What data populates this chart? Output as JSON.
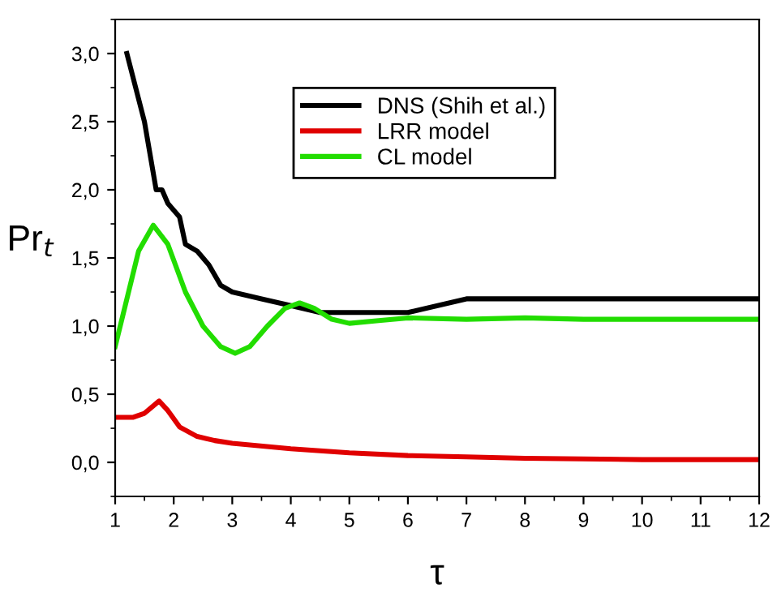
{
  "chart_data": {
    "type": "line",
    "xlabel": "τ",
    "ylabel": "Pr$_{t}$",
    "xlim": [
      1,
      12
    ],
    "xticks": [
      1,
      2,
      3,
      4,
      5,
      6,
      7,
      8,
      9,
      10,
      11,
      12
    ],
    "ylim": [
      -0.25,
      3.25
    ],
    "yticks": [
      {
        "value": 0,
        "label": "0,0"
      },
      {
        "value": 0.5,
        "label": "0,5"
      },
      {
        "value": 1,
        "label": "1,0"
      },
      {
        "value": 1.5,
        "label": "1,5"
      },
      {
        "value": 2,
        "label": "2,0"
      },
      {
        "value": 2.5,
        "label": "2,5"
      },
      {
        "value": 3,
        "label": "3,0"
      }
    ],
    "grid": false,
    "legend": "top",
    "marker": "none",
    "line_style": "solid",
    "series": [
      {
        "name": "DNS (Shih et al.)",
        "color": "#000000",
        "x": [
          1.2,
          1.5,
          1.6,
          1.7,
          1.8,
          1.9,
          2.1,
          2.2,
          2.4,
          2.6,
          2.8,
          3,
          3.5,
          4,
          4.5,
          5,
          6,
          7,
          12
        ],
        "values": [
          3.0,
          2.5,
          2.25,
          2.0,
          2.0,
          1.9,
          1.8,
          1.6,
          1.55,
          1.45,
          1.3,
          1.25,
          1.2,
          1.15,
          1.1,
          1.1,
          1.1,
          1.2,
          1.2
        ]
      },
      {
        "name": "LRR model",
        "color": "#e00000",
        "x": [
          1,
          1.3,
          1.5,
          1.75,
          1.9,
          2.1,
          2.4,
          2.7,
          3,
          4,
          5,
          6,
          7,
          8,
          9,
          10,
          12
        ],
        "values": [
          0.33,
          0.33,
          0.36,
          0.45,
          0.38,
          0.26,
          0.19,
          0.16,
          0.14,
          0.1,
          0.07,
          0.05,
          0.04,
          0.03,
          0.025,
          0.02,
          0.02
        ]
      },
      {
        "name": "CL model",
        "color": "#22dd00",
        "x": [
          1,
          1.2,
          1.4,
          1.65,
          1.9,
          2.2,
          2.5,
          2.8,
          3.05,
          3.3,
          3.6,
          3.9,
          4.15,
          4.4,
          4.7,
          5,
          5.5,
          6,
          7,
          8,
          9,
          12
        ],
        "values": [
          0.85,
          1.2,
          1.55,
          1.74,
          1.6,
          1.25,
          1.0,
          0.85,
          0.8,
          0.85,
          1.0,
          1.13,
          1.17,
          1.13,
          1.05,
          1.02,
          1.04,
          1.06,
          1.05,
          1.06,
          1.05,
          1.05
        ]
      }
    ]
  }
}
